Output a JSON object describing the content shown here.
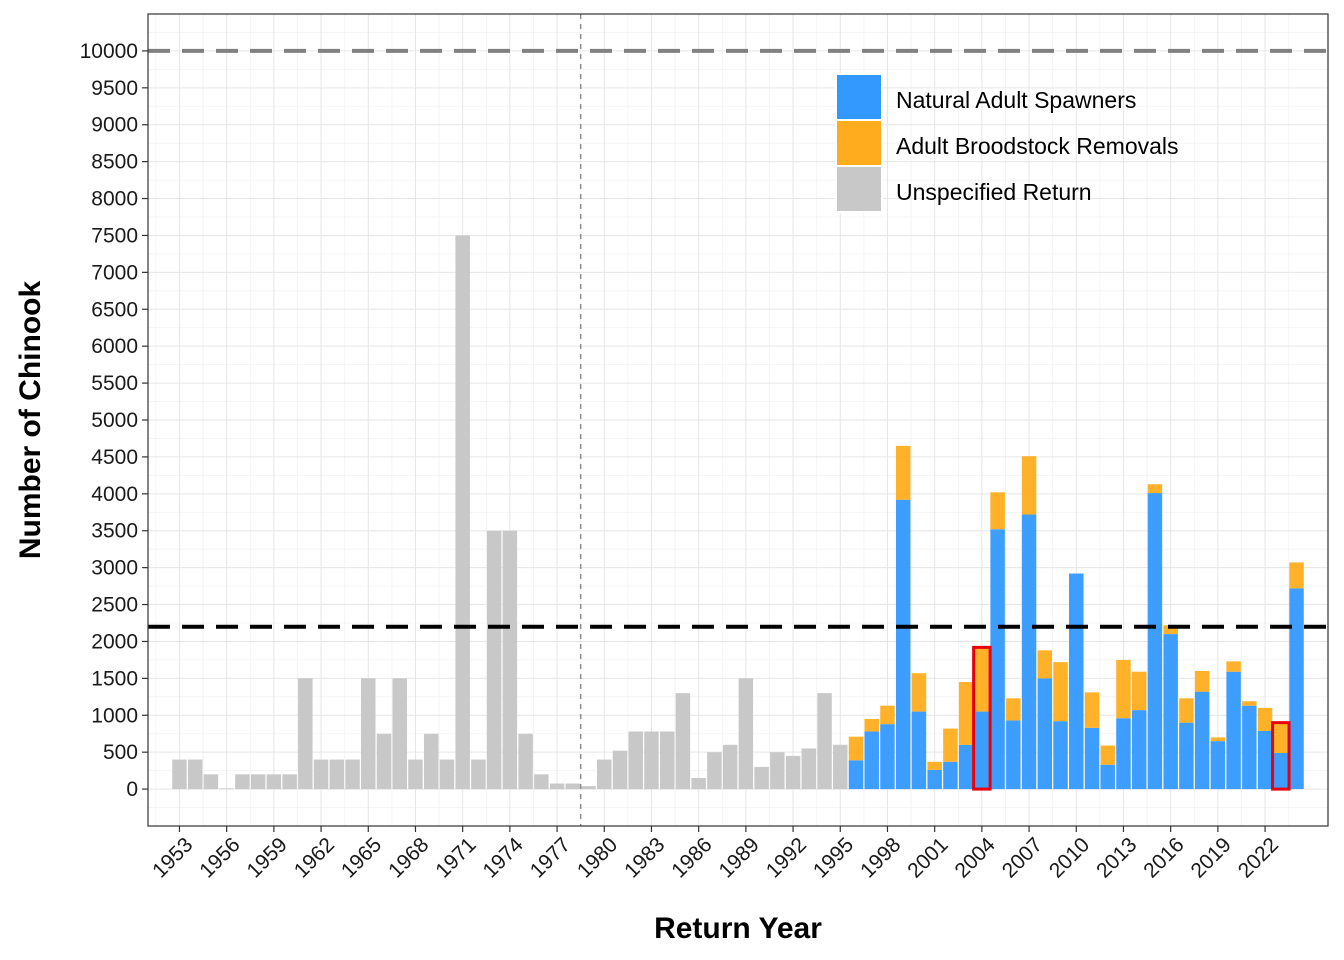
{
  "chart_data": {
    "type": "bar",
    "stacked": true,
    "xlabel": "Return Year",
    "ylabel": "Number of Chinook",
    "x_range": [
      1951,
      2026
    ],
    "ylim": [
      -500,
      10500
    ],
    "y_ticks": [
      0,
      500,
      1000,
      1500,
      2000,
      2500,
      3000,
      3500,
      4000,
      4500,
      5000,
      5500,
      6000,
      6500,
      7000,
      7500,
      8000,
      8500,
      9000,
      9500,
      10000
    ],
    "x_ticks": [
      1953,
      1956,
      1959,
      1962,
      1965,
      1968,
      1971,
      1974,
      1977,
      1980,
      1983,
      1986,
      1989,
      1992,
      1995,
      1998,
      2001,
      2004,
      2007,
      2010,
      2013,
      2016,
      2019,
      2022
    ],
    "grid": true,
    "legend_position": "top-right",
    "legend": [
      {
        "key": "natural",
        "label": "Natural Adult Spawners",
        "color": "#3399ff"
      },
      {
        "key": "broodstock",
        "label": "Adult Broodstock Removals",
        "color": "#ffad1f"
      },
      {
        "key": "unspecified",
        "label": "Unspecified Return",
        "color": "#c8c8c8"
      }
    ],
    "reference_lines": [
      {
        "axis": "y",
        "value": 10000,
        "style": "dashed",
        "color": "#808080"
      },
      {
        "axis": "y",
        "value": 2200,
        "style": "dashed",
        "color": "#000000"
      },
      {
        "axis": "x",
        "value": 1978.5,
        "style": "dotted",
        "color": "#8c8c8c"
      }
    ],
    "highlighted_years": [
      2004,
      2023
    ],
    "highlight_color": "#e8000b",
    "unspecified": [
      {
        "year": 1953,
        "value": 400
      },
      {
        "year": 1954,
        "value": 400
      },
      {
        "year": 1955,
        "value": 200
      },
      {
        "year": 1956,
        "value": 10
      },
      {
        "year": 1957,
        "value": 200
      },
      {
        "year": 1958,
        "value": 200
      },
      {
        "year": 1959,
        "value": 200
      },
      {
        "year": 1960,
        "value": 200
      },
      {
        "year": 1961,
        "value": 1500
      },
      {
        "year": 1962,
        "value": 400
      },
      {
        "year": 1963,
        "value": 400
      },
      {
        "year": 1964,
        "value": 400
      },
      {
        "year": 1965,
        "value": 1500
      },
      {
        "year": 1966,
        "value": 750
      },
      {
        "year": 1967,
        "value": 1500
      },
      {
        "year": 1968,
        "value": 400
      },
      {
        "year": 1969,
        "value": 750
      },
      {
        "year": 1970,
        "value": 400
      },
      {
        "year": 1971,
        "value": 7500
      },
      {
        "year": 1972,
        "value": 400
      },
      {
        "year": 1973,
        "value": 3500
      },
      {
        "year": 1974,
        "value": 3500
      },
      {
        "year": 1975,
        "value": 750
      },
      {
        "year": 1976,
        "value": 200
      },
      {
        "year": 1977,
        "value": 75
      },
      {
        "year": 1978,
        "value": 75
      },
      {
        "year": 1979,
        "value": 40
      },
      {
        "year": 1980,
        "value": 400
      },
      {
        "year": 1981,
        "value": 520
      },
      {
        "year": 1982,
        "value": 780
      },
      {
        "year": 1983,
        "value": 780
      },
      {
        "year": 1984,
        "value": 780
      },
      {
        "year": 1985,
        "value": 1300
      },
      {
        "year": 1986,
        "value": 150
      },
      {
        "year": 1987,
        "value": 500
      },
      {
        "year": 1988,
        "value": 600
      },
      {
        "year": 1989,
        "value": 1500
      },
      {
        "year": 1990,
        "value": 300
      },
      {
        "year": 1991,
        "value": 500
      },
      {
        "year": 1992,
        "value": 450
      },
      {
        "year": 1993,
        "value": 550
      },
      {
        "year": 1994,
        "value": 1300
      },
      {
        "year": 1995,
        "value": 600
      }
    ],
    "stacked_years": [
      {
        "year": 1996,
        "natural": 390,
        "broodstock": 320
      },
      {
        "year": 1997,
        "natural": 780,
        "broodstock": 170
      },
      {
        "year": 1998,
        "natural": 880,
        "broodstock": 250
      },
      {
        "year": 1999,
        "natural": 3920,
        "broodstock": 730
      },
      {
        "year": 2000,
        "natural": 1050,
        "broodstock": 520
      },
      {
        "year": 2001,
        "natural": 260,
        "broodstock": 110
      },
      {
        "year": 2002,
        "natural": 370,
        "broodstock": 450
      },
      {
        "year": 2003,
        "natural": 600,
        "broodstock": 850
      },
      {
        "year": 2004,
        "natural": 1050,
        "broodstock": 870
      },
      {
        "year": 2005,
        "natural": 3520,
        "broodstock": 500
      },
      {
        "year": 2006,
        "natural": 930,
        "broodstock": 300
      },
      {
        "year": 2007,
        "natural": 3720,
        "broodstock": 790
      },
      {
        "year": 2008,
        "natural": 1500,
        "broodstock": 380
      },
      {
        "year": 2009,
        "natural": 920,
        "broodstock": 800
      },
      {
        "year": 2010,
        "natural": 2920,
        "broodstock": 0
      },
      {
        "year": 2011,
        "natural": 830,
        "broodstock": 480
      },
      {
        "year": 2012,
        "natural": 330,
        "broodstock": 260
      },
      {
        "year": 2013,
        "natural": 960,
        "broodstock": 790
      },
      {
        "year": 2014,
        "natural": 1070,
        "broodstock": 520
      },
      {
        "year": 2015,
        "natural": 4010,
        "broodstock": 120
      },
      {
        "year": 2016,
        "natural": 2100,
        "broodstock": 120
      },
      {
        "year": 2017,
        "natural": 900,
        "broodstock": 330
      },
      {
        "year": 2018,
        "natural": 1320,
        "broodstock": 280
      },
      {
        "year": 2019,
        "natural": 650,
        "broodstock": 50
      },
      {
        "year": 2020,
        "natural": 1590,
        "broodstock": 140
      },
      {
        "year": 2021,
        "natural": 1130,
        "broodstock": 60
      },
      {
        "year": 2022,
        "natural": 790,
        "broodstock": 310
      },
      {
        "year": 2023,
        "natural": 490,
        "broodstock": 410
      },
      {
        "year": 2024,
        "natural": 2720,
        "broodstock": 350
      }
    ]
  }
}
